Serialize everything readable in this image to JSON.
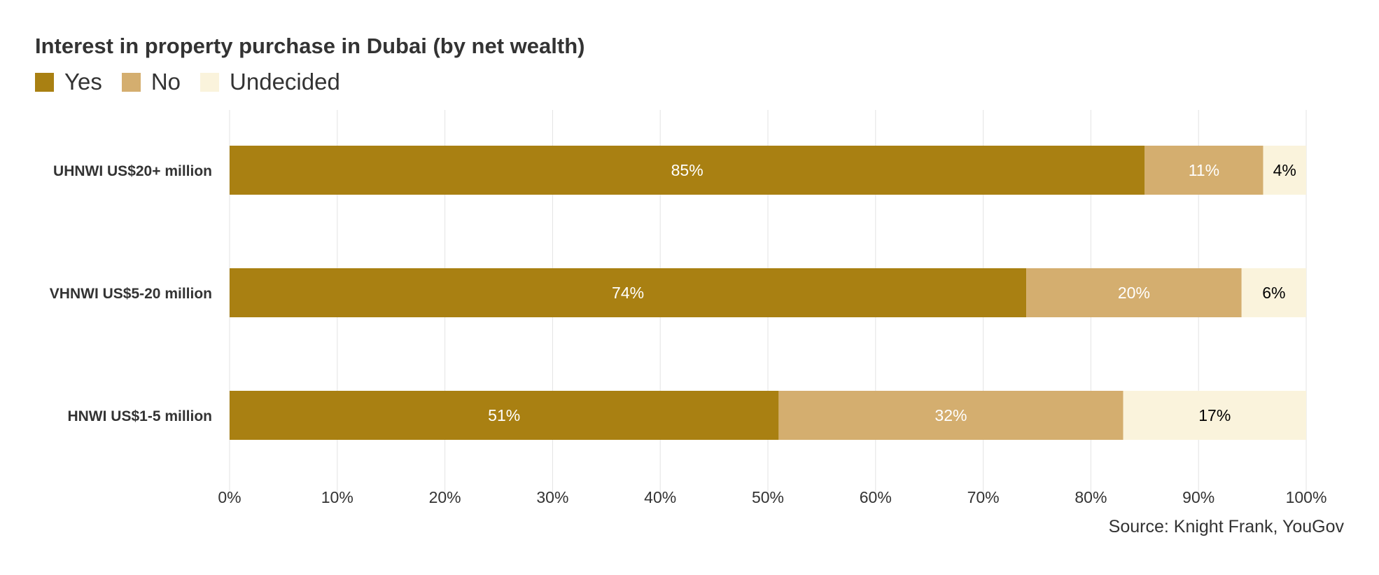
{
  "chart_data": {
    "type": "bar",
    "orientation": "horizontal",
    "stacked": true,
    "title": "Interest in property purchase in Dubai (by net wealth)",
    "categories": [
      "UHNWI US$20+ million",
      "VHNWI US$5-20  million",
      "HNWI US$1-5 million"
    ],
    "series": [
      {
        "name": "Yes",
        "values": [
          85,
          74,
          51
        ],
        "color": "#a98012",
        "label_color": "#ffffff"
      },
      {
        "name": "No",
        "values": [
          11,
          20,
          32
        ],
        "color": "#d4ae6f",
        "label_color": "#ffffff"
      },
      {
        "name": "Undecided",
        "values": [
          4,
          6,
          17
        ],
        "color": "#faf3dc",
        "label_color": "#000000"
      }
    ],
    "xlim": [
      0,
      100
    ],
    "xticks": [
      "0%",
      "10%",
      "20%",
      "30%",
      "40%",
      "50%",
      "60%",
      "70%",
      "80%",
      "90%",
      "100%"
    ],
    "grid": true,
    "legend_position": "top-left",
    "source": "Source: Knight Frank, YouGov"
  }
}
